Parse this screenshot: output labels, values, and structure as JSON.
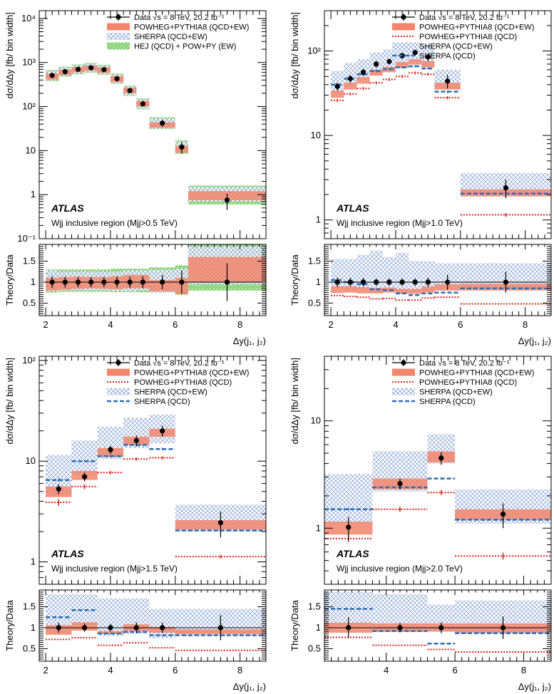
{
  "colors": {
    "powheg": "#f2856c",
    "powheg_qcd": "#d62418",
    "sherpa": "#5b7fbf",
    "sherpa_qcd": "#2a6db5",
    "hej": "#58b947",
    "data": "#000000"
  },
  "legend_labels": {
    "data": "Data √s = 8 TeV, 20.2 fb⁻¹",
    "powheg_ew": "POWHEG+PYTHIA8 (QCD+EW)",
    "powheg_qcd": "POWHEG+PYTHIA8 (QCD)",
    "sherpa_ew": "SHERPA (QCD+EW)",
    "sherpa_qcd": "SHERPA (QCD)",
    "hej": "HEJ (QCD) + POW+PY (EW)"
  },
  "chart_data": [
    {
      "type": "histogram-ratio",
      "atlas_label": "ATLAS",
      "region_label": "Wjj inclusive region (Mjj>0.5 TeV)",
      "ylabel": "dσ/dΔy [fb/ bin width]",
      "ratio_ylabel": "Theory/Data",
      "xlabel": "Δy(j₁, j₂)",
      "xlim": [
        1.8,
        8.8
      ],
      "ylim": [
        0.1,
        15000
      ],
      "ratio_ylim": [
        0.2,
        1.9
      ],
      "x_ticks": [
        "2",
        "4",
        "6",
        "8"
      ],
      "y_ticks": [
        "10⁻¹",
        "1",
        "10",
        "10²",
        "10³",
        "10⁴"
      ],
      "ratio_ticks": [
        "0.5",
        "1",
        "1.5"
      ],
      "legend": [
        "data",
        "powheg_ew",
        "sherpa_ew",
        "hej"
      ],
      "bins": [
        [
          2.0,
          2.4
        ],
        [
          2.4,
          2.8
        ],
        [
          2.8,
          3.2
        ],
        [
          3.2,
          3.6
        ],
        [
          3.6,
          4.0
        ],
        [
          4.0,
          4.4
        ],
        [
          4.4,
          4.8
        ],
        [
          4.8,
          5.2
        ],
        [
          5.2,
          6.0
        ],
        [
          6.0,
          6.4
        ],
        [
          6.4,
          8.8
        ]
      ],
      "data": {
        "x": [
          2.2,
          2.6,
          3.0,
          3.4,
          3.8,
          4.2,
          4.6,
          5.0,
          5.6,
          6.2,
          7.6
        ],
        "y": [
          510,
          620,
          700,
          760,
          690,
          430,
          230,
          115,
          42,
          12,
          0.75
        ],
        "err": [
          70,
          80,
          80,
          90,
          80,
          55,
          30,
          15,
          7,
          3.5,
          0.3
        ]
      },
      "powheg": {
        "y": [
          480,
          600,
          690,
          740,
          670,
          420,
          230,
          115,
          38,
          11,
          0.95
        ],
        "lo": [
          410,
          520,
          600,
          650,
          580,
          360,
          200,
          100,
          33,
          9,
          0.75
        ],
        "hi": [
          560,
          690,
          790,
          850,
          770,
          490,
          270,
          135,
          44,
          13,
          1.2
        ]
      },
      "sherpa": {
        "y": [
          500,
          620,
          700,
          760,
          690,
          430,
          230,
          115,
          42,
          12,
          1.0
        ],
        "lo": [
          400,
          500,
          560,
          610,
          550,
          340,
          180,
          90,
          32,
          9,
          0.7
        ],
        "hi": [
          640,
          760,
          860,
          930,
          840,
          530,
          290,
          145,
          54,
          16,
          1.5
        ]
      },
      "hej": {
        "y": [
          500,
          620,
          700,
          760,
          690,
          430,
          230,
          115,
          42,
          12,
          1.0
        ],
        "lo": [
          380,
          480,
          540,
          590,
          530,
          330,
          175,
          87,
          31,
          8.5,
          0.6
        ],
        "hi": [
          670,
          800,
          900,
          970,
          880,
          560,
          300,
          152,
          57,
          17,
          1.6
        ]
      },
      "ratio_data": {
        "y": [
          1,
          1,
          1,
          1,
          1,
          1,
          1,
          1,
          1,
          1,
          1
        ],
        "err": [
          0.14,
          0.13,
          0.12,
          0.12,
          0.12,
          0.13,
          0.13,
          0.14,
          0.17,
          0.28,
          0.45
        ]
      },
      "ratio_powheg": {
        "lo": [
          0.8,
          0.82,
          0.84,
          0.85,
          0.84,
          0.83,
          0.85,
          0.85,
          0.78,
          0.72,
          1.0
        ],
        "hi": [
          1.1,
          1.12,
          1.13,
          1.12,
          1.12,
          1.14,
          1.17,
          1.17,
          1.05,
          1.1,
          1.6
        ]
      },
      "ratio_sherpa": {
        "lo": [
          0.78,
          0.8,
          0.8,
          0.8,
          0.8,
          0.78,
          0.78,
          0.8,
          0.75,
          0.75,
          0.95
        ],
        "hi": [
          1.28,
          1.25,
          1.25,
          1.25,
          1.25,
          1.25,
          1.28,
          1.28,
          1.3,
          1.32,
          1.85
        ]
      },
      "ratio_hej": {
        "lo": [
          0.75,
          0.77,
          0.77,
          0.77,
          0.77,
          0.76,
          0.76,
          0.76,
          0.75,
          0.7,
          0.8
        ],
        "hi": [
          1.3,
          1.3,
          1.3,
          1.3,
          1.3,
          1.32,
          1.32,
          1.32,
          1.35,
          1.4,
          1.9
        ]
      }
    },
    {
      "type": "histogram-ratio",
      "atlas_label": "ATLAS",
      "region_label": "Wjj inclusive region (Mjj>1.0 TeV)",
      "ylabel": "dσ/dΔy [fb/ bin width]",
      "ratio_ylabel": "Theory/Data",
      "xlabel": "Δy(j₁, j₂)",
      "xlim": [
        1.8,
        8.8
      ],
      "ylim": [
        0.6,
        300
      ],
      "ratio_ylim": [
        0.2,
        1.9
      ],
      "x_ticks": [
        "2",
        "4",
        "6",
        "8"
      ],
      "y_ticks": [
        "1",
        "10",
        "10²"
      ],
      "ratio_ticks": [
        "0.5",
        "1",
        "1.5"
      ],
      "legend": [
        "data",
        "powheg_ew",
        "powheg_qcd",
        "sherpa_ew",
        "sherpa_qcd"
      ],
      "bins": [
        [
          2.0,
          2.4
        ],
        [
          2.4,
          2.8
        ],
        [
          2.8,
          3.2
        ],
        [
          3.2,
          3.6
        ],
        [
          3.6,
          4.0
        ],
        [
          4.0,
          4.4
        ],
        [
          4.4,
          4.8
        ],
        [
          4.8,
          5.2
        ],
        [
          5.2,
          6.0
        ],
        [
          6.0,
          8.8
        ]
      ],
      "data": {
        "x": [
          2.2,
          2.6,
          3.0,
          3.4,
          3.8,
          4.2,
          4.6,
          5.0,
          5.6,
          7.4
        ],
        "y": [
          38,
          47,
          56,
          70,
          75,
          88,
          96,
          85,
          44,
          2.4
        ],
        "err": [
          4,
          5,
          5,
          6,
          6,
          7,
          8,
          9,
          8,
          0.6
        ]
      },
      "powheg": {
        "y": [
          31,
          38,
          45,
          55,
          60,
          68,
          74,
          70,
          38,
          2.1
        ],
        "lo": [
          28,
          35,
          41,
          51,
          56,
          63,
          69,
          64,
          35,
          1.9
        ],
        "hi": [
          34,
          42,
          49,
          60,
          65,
          74,
          80,
          76,
          42,
          2.3
        ]
      },
      "powheg_qcd": {
        "y": [
          26,
          31,
          36,
          42,
          46,
          50,
          55,
          53,
          28,
          1.15
        ],
        "err": [
          1.2,
          1.3,
          1.5,
          1.8,
          2.0,
          2.1,
          2.2,
          2.2,
          1.2,
          0.06
        ]
      },
      "sherpa": {
        "y": [
          45,
          55,
          62,
          75,
          82,
          93,
          100,
          92,
          48,
          2.8
        ],
        "lo": [
          32,
          38,
          46,
          54,
          60,
          68,
          74,
          66,
          35,
          2.0
        ],
        "hi": [
          58,
          72,
          80,
          96,
          104,
          118,
          126,
          118,
          60,
          3.6
        ]
      },
      "sherpa_qcd": {
        "y": [
          40,
          47,
          53,
          58,
          61,
          64,
          66,
          62,
          33,
          2.05
        ],
        "err": [
          1.5,
          1.6,
          1.7,
          1.8,
          1.9,
          2.0,
          2.1,
          2.0,
          1.2,
          0.08
        ]
      },
      "ratio_data": {
        "y": [
          1,
          1,
          1,
          1,
          1,
          1,
          1,
          1,
          1,
          1
        ],
        "err": [
          0.11,
          0.1,
          0.1,
          0.08,
          0.08,
          0.08,
          0.08,
          0.11,
          0.18,
          0.25
        ]
      },
      "ratio_powheg": {
        "lo": [
          0.74,
          0.75,
          0.73,
          0.73,
          0.75,
          0.72,
          0.72,
          0.75,
          0.8,
          0.8
        ],
        "hi": [
          0.9,
          0.9,
          0.88,
          0.86,
          0.87,
          0.84,
          0.84,
          0.9,
          0.95,
          0.96
        ]
      },
      "ratio_powheg_qcd": {
        "y": [
          0.68,
          0.66,
          0.64,
          0.6,
          0.61,
          0.57,
          0.57,
          0.62,
          0.64,
          0.48
        ]
      },
      "ratio_sherpa": {
        "lo": [
          0.85,
          0.8,
          0.82,
          0.77,
          0.8,
          0.77,
          0.77,
          0.78,
          0.8,
          0.85
        ],
        "hi": [
          1.55,
          1.55,
          1.65,
          1.75,
          1.6,
          1.7,
          1.5,
          1.5,
          1.45,
          1.45
        ]
      },
      "ratio_sherpa_qcd": {
        "y": [
          1.05,
          1.0,
          0.95,
          0.83,
          0.81,
          0.73,
          0.69,
          0.73,
          0.75,
          0.85
        ]
      }
    },
    {
      "type": "histogram-ratio",
      "atlas_label": "ATLAS",
      "region_label": "Wjj inclusive region (Mjj>1.5 TeV)",
      "ylabel": "dσ/dΔy [fb/ bin width]",
      "ratio_ylabel": "Theory/Data",
      "xlabel": "Δy(j₁, j₂)",
      "xlim": [
        1.8,
        8.8
      ],
      "ylim": [
        0.6,
        110
      ],
      "ratio_ylim": [
        0.2,
        1.9
      ],
      "x_ticks": [
        "2",
        "4",
        "6",
        "8"
      ],
      "y_ticks": [
        "1",
        "10",
        "10²"
      ],
      "ratio_ticks": [
        "0.5",
        "1",
        "1.5"
      ],
      "legend": [
        "data",
        "powheg_ew",
        "powheg_qcd",
        "sherpa_ew",
        "sherpa_qcd"
      ],
      "bins": [
        [
          2.0,
          2.8
        ],
        [
          2.8,
          3.6
        ],
        [
          3.6,
          4.4
        ],
        [
          4.4,
          5.2
        ],
        [
          5.2,
          6.0
        ],
        [
          6.0,
          8.8
        ]
      ],
      "data": {
        "x": [
          2.4,
          3.2,
          4.0,
          4.8,
          5.6,
          7.4
        ],
        "y": [
          5.3,
          7.0,
          13,
          16,
          20,
          2.45
        ],
        "err": [
          0.6,
          0.7,
          1.2,
          2.0,
          2.5,
          0.7
        ]
      },
      "powheg": {
        "y": [
          5.0,
          7.2,
          12.2,
          16,
          19,
          2.35
        ],
        "lo": [
          4.4,
          6.5,
          11,
          14.5,
          17.5,
          2.1
        ],
        "hi": [
          5.6,
          8.0,
          13.5,
          17.5,
          21,
          2.6
        ]
      },
      "powheg_qcd": {
        "y": [
          3.9,
          5.6,
          7.7,
          10.5,
          10.8,
          1.13
        ],
        "err": [
          0.3,
          0.3,
          0.3,
          0.4,
          0.4,
          0.05
        ]
      },
      "sherpa": {
        "y": [
          6.6,
          10,
          14,
          17,
          19,
          2.4
        ],
        "lo": [
          4.6,
          7.4,
          10.5,
          13.5,
          15,
          2.0
        ],
        "hi": [
          11.5,
          16,
          22,
          27,
          29,
          3.7
        ]
      },
      "sherpa_qcd": {
        "y": [
          6.5,
          10,
          11.2,
          14.5,
          13.2,
          2.05
        ],
        "err": [
          0.25,
          0.25,
          0.3,
          0.4,
          0.4,
          0.06
        ]
      },
      "ratio_data": {
        "y": [
          1,
          1,
          1,
          1,
          1,
          1
        ],
        "err": [
          0.12,
          0.1,
          0.09,
          0.13,
          0.12,
          0.3
        ]
      },
      "ratio_powheg": {
        "lo": [
          0.83,
          0.93,
          0.85,
          0.92,
          0.88,
          0.85
        ],
        "hi": [
          1.06,
          1.13,
          0.92,
          1.08,
          1.02,
          0.96
        ]
      },
      "ratio_powheg_qcd": {
        "y": [
          0.72,
          0.76,
          0.58,
          0.64,
          0.52,
          0.46
        ]
      },
      "ratio_sherpa": {
        "lo": [
          0.88,
          1.05,
          0.8,
          0.85,
          0.75,
          0.8
        ],
        "hi": [
          1.8,
          1.8,
          1.7,
          1.7,
          1.45,
          1.45
        ]
      },
      "ratio_sherpa_qcd": {
        "y": [
          1.25,
          1.42,
          0.86,
          0.9,
          0.82,
          0.82
        ]
      }
    },
    {
      "type": "histogram-ratio",
      "atlas_label": "ATLAS",
      "region_label": "Wjj inclusive region (Mjj>2.0 TeV)",
      "ylabel": "dσ/dΔy [fb/ bin width]",
      "ratio_ylabel": "Theory/Data",
      "xlabel": "Δy(j₁, j₂)",
      "xlim": [
        2.2,
        8.8
      ],
      "ylim": [
        0.3,
        40
      ],
      "ratio_ylim": [
        0.2,
        1.9
      ],
      "x_ticks": [
        "4",
        "6",
        "8"
      ],
      "y_ticks": [
        "1",
        "10"
      ],
      "ratio_ticks": [
        "0.5",
        "1",
        "1.5"
      ],
      "legend": [
        "data",
        "powheg_ew",
        "powheg_qcd",
        "sherpa_ew",
        "sherpa_qcd"
      ],
      "bins": [
        [
          2.2,
          3.6
        ],
        [
          3.6,
          5.2
        ],
        [
          5.2,
          6.0
        ],
        [
          6.0,
          8.8
        ]
      ],
      "data": {
        "x": [
          2.9,
          4.4,
          5.6,
          7.4
        ],
        "y": [
          1.02,
          2.6,
          4.5,
          1.35
        ],
        "err": [
          0.25,
          0.3,
          0.6,
          0.35
        ]
      },
      "powheg": {
        "y": [
          1.0,
          2.6,
          4.6,
          1.35
        ],
        "lo": [
          0.87,
          2.3,
          4.1,
          1.2
        ],
        "hi": [
          1.15,
          2.9,
          5.2,
          1.5
        ]
      },
      "powheg_qcd": {
        "y": [
          0.8,
          1.5,
          2.15,
          0.55
        ],
        "err": [
          0.06,
          0.08,
          0.12,
          0.04
        ]
      },
      "sherpa": {
        "y": [
          1.5,
          2.6,
          4.6,
          1.35
        ],
        "lo": [
          1.1,
          2.2,
          4.0,
          1.1
        ],
        "hi": [
          3.2,
          5.2,
          7.5,
          2.3
        ]
      },
      "sherpa_qcd": {
        "y": [
          1.5,
          2.4,
          2.9,
          1.2
        ],
        "err": [
          0.04,
          0.05,
          0.06,
          0.04
        ]
      },
      "ratio_data": {
        "y": [
          1,
          1,
          1,
          1
        ],
        "err": [
          0.25,
          0.11,
          0.13,
          0.27
        ]
      },
      "ratio_powheg": {
        "lo": [
          0.88,
          0.9,
          0.91,
          0.88
        ],
        "hi": [
          1.12,
          1.1,
          1.1,
          1.1
        ]
      },
      "ratio_powheg_qcd": {
        "y": [
          0.77,
          0.58,
          0.48,
          0.42
        ]
      },
      "ratio_sherpa": {
        "lo": [
          1.05,
          0.95,
          0.9,
          0.85
        ],
        "hi": [
          1.85,
          1.8,
          1.55,
          1.65
        ]
      },
      "ratio_sherpa_qcd": {
        "y": [
          1.45,
          0.92,
          0.62,
          0.87
        ]
      }
    }
  ]
}
